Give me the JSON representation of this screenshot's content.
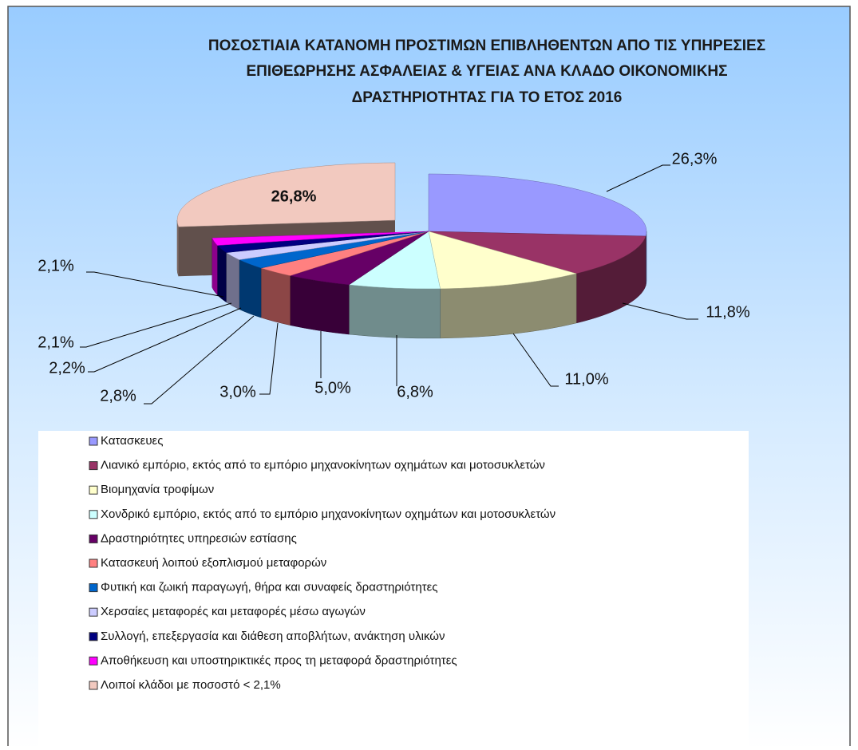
{
  "chart_data": {
    "type": "pie",
    "title": [
      "ΠΟΣΟΣΤΙΑΙΑ ΚΑΤΑΝΟΜΗ ΠΡΟΣΤΙΜΩΝ ΕΠΙΒΛΗΘΕΝΤΩΝ ΑΠΟ ΤΙΣ ΥΠΗΡΕΣΙΕΣ",
      "ΕΠΙΘΕΩΡΗΣΗΣ ΑΣΦΑΛΕΙΑΣ & ΥΓΕΙΑΣ ΑΝΑ ΚΛΑΔΟ ΟΙΚΟΝΟΜΙΚΗΣ",
      "ΔΡΑΣΤΗΡΙΟΤΗΤΑΣ ΓΙΑ ΤΟ ΕΤΟΣ 2016"
    ],
    "categories": [
      "Κατασκευες",
      "Λιανικό εμπόριο, εκτός από το εμπόριο μηχανοκίνητων οχημάτων και  μοτοσυκλετών",
      "Βιομηχανία τροφίμων",
      "Χονδρικό εμπόριο, εκτός από το εμπόριο μηχανοκίνητων οχημάτων και  μοτοσυκλετών",
      "Δραστηριότητες υπηρεσιών εστίασης",
      "Κατασκευή λοιπού εξοπλισμού μεταφορών",
      "Φυτική και ζωική παραγωγή, θήρα και συναφείς δραστηριότητες",
      "Χερσαίες μεταφορές και μεταφορές μέσω αγωγών",
      "Συλλογή, επεξεργασία και διάθεση αποβλήτων, ανάκτηση υλικών",
      "Αποθήκευση και υποστηρικτικές προς τη μεταφορά δραστηριότητες",
      "Λοιποί κλάδοι με ποσοστό < 2,1%"
    ],
    "values": [
      26.3,
      11.8,
      11.0,
      6.8,
      5.0,
      3.0,
      2.8,
      2.2,
      2.1,
      2.1,
      26.8
    ],
    "value_labels": [
      "26,3%",
      "11,8%",
      "11,0%",
      "6,8%",
      "5,0%",
      "3,0%",
      "2,8%",
      "2,2%",
      "2,1%",
      "2,1%",
      "26,8%"
    ],
    "colors": [
      "#9999ff",
      "#993366",
      "#ffffcc",
      "#ccffff",
      "#660066",
      "#ff8080",
      "#0066cc",
      "#ccccff",
      "#000080",
      "#ff00ff",
      "#f2c9bf"
    ],
    "legend": "bottom"
  }
}
